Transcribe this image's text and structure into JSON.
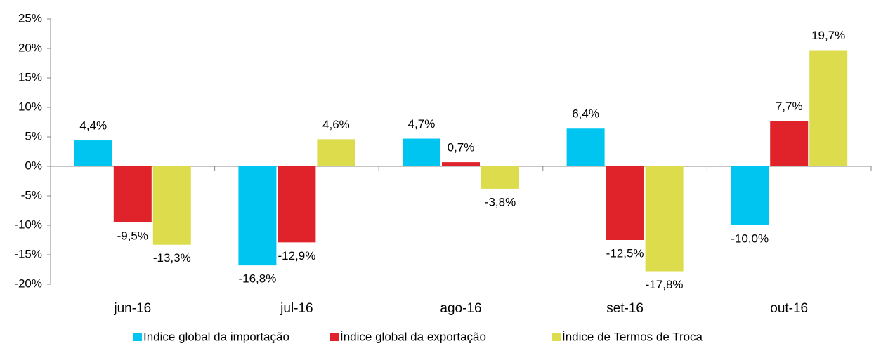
{
  "chart_data": {
    "type": "bar",
    "categories": [
      "jun-16",
      "jul-16",
      "ago-16",
      "set-16",
      "out-16"
    ],
    "series": [
      {
        "name": "Indice global da importação",
        "color": "#00c5f0",
        "values": [
          4.4,
          -16.8,
          4.7,
          6.4,
          -10.0
        ],
        "value_labels": [
          "4,4%",
          "-16,8%",
          "4,7%",
          "6,4%",
          "-10,0%"
        ]
      },
      {
        "name": "Índice global da exportação",
        "color": "#e0232b",
        "values": [
          -9.5,
          -12.9,
          0.7,
          -12.5,
          7.7
        ],
        "value_labels": [
          "-9,5%",
          "-12,9%",
          "0,7%",
          "-12,5%",
          "7,7%"
        ]
      },
      {
        "name": "Índice de Termos de Troca",
        "color": "#dcdc4c",
        "values": [
          -13.3,
          4.6,
          -3.8,
          -17.8,
          19.7
        ],
        "value_labels": [
          "-13,3%",
          "4,6%",
          "-3,8%",
          "-17,8%",
          "19,7%"
        ]
      }
    ],
    "ylim": [
      -20,
      25
    ],
    "yticks": [
      {
        "value": -20,
        "label": "-20%"
      },
      {
        "value": -15,
        "label": "-15%"
      },
      {
        "value": -10,
        "label": "-10%"
      },
      {
        "value": -5,
        "label": "-5%"
      },
      {
        "value": 0,
        "label": "0%"
      },
      {
        "value": 5,
        "label": "5%"
      },
      {
        "value": 10,
        "label": "10%"
      },
      {
        "value": 15,
        "label": "15%"
      },
      {
        "value": 20,
        "label": "20%"
      },
      {
        "value": 25,
        "label": "25%"
      }
    ],
    "grid": false
  }
}
